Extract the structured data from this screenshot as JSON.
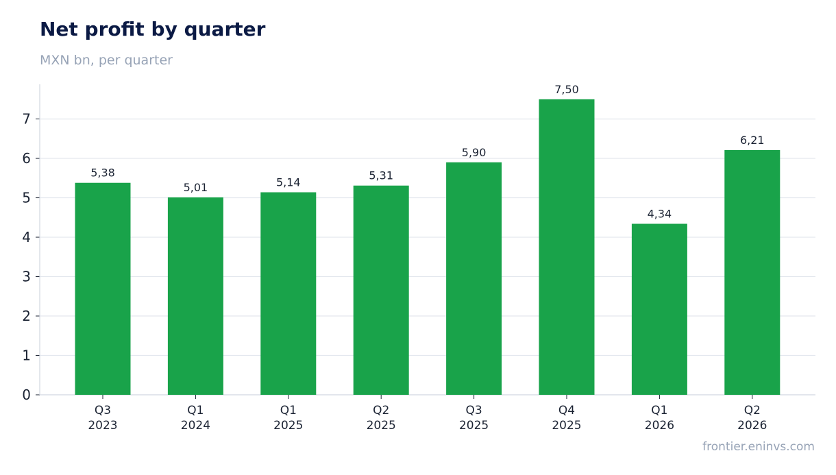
{
  "title": "Net profit by quarter",
  "subtitle": "MXN bn, per quarter",
  "source": "frontier.eninvs.com",
  "colors": {
    "bar": "#19a34a",
    "grid": "#e3e7ee",
    "axis": "#d2d7e0",
    "title": "#0b1a44",
    "muted": "#97a3b6",
    "text": "#1b2333"
  },
  "chart_data": {
    "type": "bar",
    "categories": [
      "Q3 2023",
      "Q1 2024",
      "Q1 2025",
      "Q2 2025",
      "Q3 2025",
      "Q4 2025",
      "Q1 2026",
      "Q2 2026"
    ],
    "category_lines": [
      [
        "Q3",
        "2023"
      ],
      [
        "Q1",
        "2024"
      ],
      [
        "Q1",
        "2025"
      ],
      [
        "Q2",
        "2025"
      ],
      [
        "Q3",
        "2025"
      ],
      [
        "Q4",
        "2025"
      ],
      [
        "Q1",
        "2026"
      ],
      [
        "Q2",
        "2026"
      ]
    ],
    "values": [
      5.38,
      5.01,
      5.14,
      5.31,
      5.9,
      7.5,
      4.34,
      6.21
    ],
    "value_labels": [
      "5,38",
      "5,01",
      "5,14",
      "5,31",
      "5,90",
      "7,50",
      "4,34",
      "6,21"
    ],
    "yticks": [
      0,
      1,
      2,
      3,
      4,
      5,
      6,
      7
    ],
    "ylim": [
      0,
      7.88
    ],
    "grid": true,
    "title": "Net profit by quarter",
    "xlabel": "",
    "ylabel": ""
  }
}
